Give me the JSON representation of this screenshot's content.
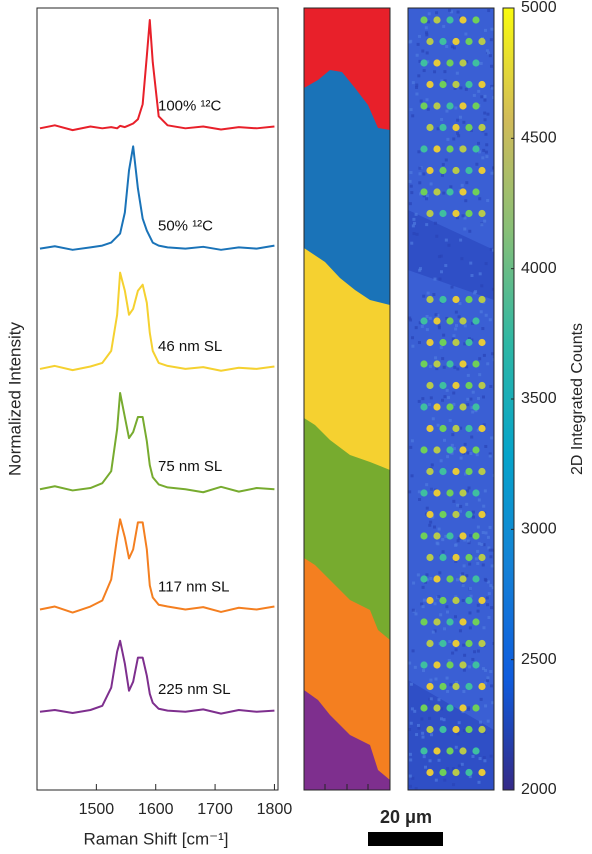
{
  "chart_data": {
    "type": "line",
    "xlabel": "Raman Shift [cm⁻¹]",
    "ylabel": "Normalized Intensity",
    "xlim": [
      1400,
      1806
    ],
    "xticks": [
      1500,
      1600,
      1700,
      1800
    ],
    "ylim": [
      0,
      13
    ],
    "x": [
      1405,
      1430,
      1460,
      1490,
      1510,
      1525,
      1535,
      1540,
      1548,
      1555,
      1562,
      1570,
      1578,
      1585,
      1590,
      1595,
      1605,
      1620,
      1650,
      1680,
      1710,
      1740,
      1770,
      1800
    ],
    "series": [
      {
        "name": "100% ¹²C",
        "color": "#e8202a",
        "values": [
          11.0,
          11.05,
          10.97,
          11.03,
          11.0,
          11.02,
          11.0,
          11.04,
          11.02,
          11.05,
          11.08,
          11.15,
          11.4,
          12.2,
          12.8,
          12.1,
          11.2,
          11.05,
          11.0,
          11.03,
          10.98,
          11.02,
          11.0,
          11.03
        ]
      },
      {
        "name": "50% ¹²C",
        "color": "#1a73b8",
        "values": [
          9.0,
          9.04,
          8.98,
          9.02,
          9.05,
          9.1,
          9.2,
          9.25,
          9.6,
          10.3,
          10.7,
          10.0,
          9.5,
          9.3,
          9.2,
          9.1,
          9.05,
          9.02,
          9.0,
          9.03,
          8.98,
          9.02,
          9.0,
          9.05
        ]
      },
      {
        "name": "46 nm SL",
        "color": "#f5d130",
        "values": [
          7.0,
          7.05,
          6.98,
          7.04,
          7.1,
          7.3,
          7.9,
          8.6,
          8.3,
          7.9,
          8.0,
          8.3,
          8.4,
          8.1,
          7.6,
          7.3,
          7.1,
          7.05,
          7.0,
          7.03,
          6.97,
          7.02,
          7.0,
          7.04
        ]
      },
      {
        "name": "75 nm SL",
        "color": "#77ab2f",
        "values": [
          5.0,
          5.05,
          4.98,
          5.02,
          5.1,
          5.3,
          6.0,
          6.6,
          6.2,
          5.85,
          5.95,
          6.2,
          6.2,
          5.8,
          5.4,
          5.2,
          5.08,
          5.03,
          5.0,
          4.95,
          5.04,
          4.96,
          5.02,
          5.0
        ]
      },
      {
        "name": "117 nm SL",
        "color": "#f47f20",
        "values": [
          3.0,
          3.05,
          2.95,
          3.05,
          3.15,
          3.5,
          4.2,
          4.5,
          4.2,
          3.85,
          4.0,
          4.45,
          4.45,
          4.0,
          3.4,
          3.2,
          3.08,
          3.05,
          3.0,
          3.04,
          2.96,
          3.03,
          3.0,
          3.05
        ]
      },
      {
        "name": "225 nm SL",
        "color": "#7e2f8e",
        "values": [
          1.3,
          1.33,
          1.28,
          1.33,
          1.4,
          1.7,
          2.3,
          2.48,
          2.1,
          1.65,
          1.8,
          2.2,
          2.2,
          1.9,
          1.6,
          1.45,
          1.35,
          1.32,
          1.3,
          1.34,
          1.27,
          1.33,
          1.3,
          1.32
        ]
      }
    ],
    "scale_bar": "20 μm",
    "colorbar": {
      "label": "2D Integrated Counts",
      "lim": [
        2000,
        5000
      ],
      "ticks": [
        2000,
        2500,
        3000,
        3500,
        4000,
        4500,
        5000
      ],
      "colors": [
        "#352a87",
        "#0f5cdd",
        "#1481d6",
        "#06a4ca",
        "#2eb7a4",
        "#87bf77",
        "#d1bb59",
        "#f9fb0e"
      ]
    }
  }
}
